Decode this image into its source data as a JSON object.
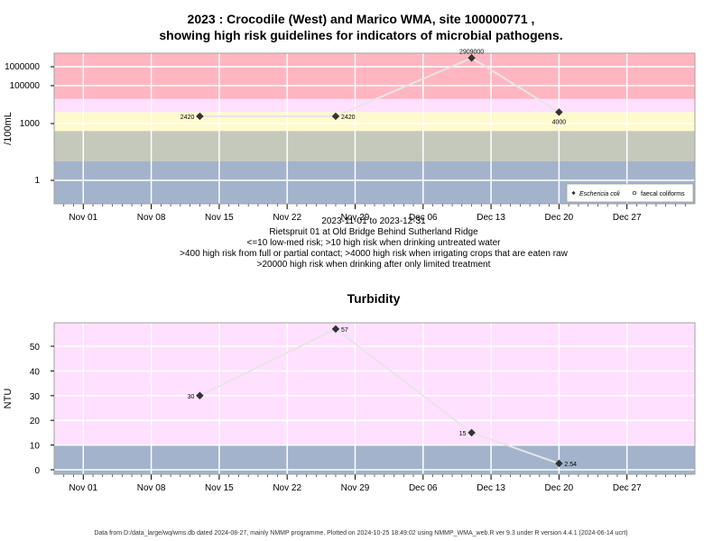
{
  "title_line1": "2023 : Crocodile (West) and Marico WMA, site 100000771 ,",
  "title_line2": "showing high risk guidelines for indicators of microbial pathogens.",
  "subtitles": [
    "2023-11-01 to 2023-12-31",
    "Rietspruit 01 at Old Bridge Behind Sutherland Ridge",
    "<=10 low-med risk; >10 high risk when drinking untreated water",
    ">400 high risk from full or partial contact; >4000 high risk when irrigating crops that are eaten raw",
    ">20000 high risk when drinking after only limited treatment"
  ],
  "turbidity_title": "Turbidity",
  "footer": "Data from D:/data_large/wq/wms.db dated 2024-08-27, mainly NMMP programme. Plotted on 2024-10-25 18:49:02 using NMMP_WMA_web.R ver 9.3 under R version 4.4.1 (2024-06-14 ucrt)",
  "colors": {
    "band_red": "#ffb6c1",
    "band_pink": "#ffe0ff",
    "band_yellow": "#fffacd",
    "band_grey": "#c5c9bc",
    "band_blue": "#a3b3cc",
    "turb_pink": "#ffe0ff",
    "line": "#e6e6e6",
    "point": "#333333",
    "grid": "#ffffff",
    "frame": "#a0a0a0"
  },
  "chart_data": [
    {
      "type": "line",
      "ylabel": "/100mL",
      "log_y": true,
      "x_ticks": [
        "Nov 01",
        "Nov 08",
        "Nov 15",
        "Nov 22",
        "Nov 29",
        "Dec 06",
        "Dec 13",
        "Dec 20",
        "Dec 27"
      ],
      "y_ticks": [
        "1",
        "1000",
        "100000",
        "1000000"
      ],
      "legend": [
        "Eschericia coli",
        "faecal coliforms"
      ],
      "legend_position": "bottom-right",
      "guideline_bands": [
        {
          "label": "low-med risk",
          "max": 10
        },
        {
          "label": "high risk when drinking untreated water",
          "min": 10,
          "max": 400
        },
        {
          "label": "high risk from full or partial contact",
          "min": 400,
          "max": 4000
        },
        {
          "label": "high risk when irrigating crops that are eaten raw",
          "min": 4000,
          "max": 20000
        },
        {
          "label": "high risk when drinking after only limited treatment",
          "min": 20000
        }
      ],
      "series": [
        {
          "name": "Eschericia coli",
          "x": [
            "2023-11-13",
            "2023-11-27",
            "2023-12-11",
            "2023-12-20"
          ],
          "values": [
            2420,
            2420,
            2909000,
            4000
          ],
          "labels": [
            "2420",
            "2420",
            "2909000",
            "4000"
          ]
        }
      ]
    },
    {
      "type": "line",
      "title": "Turbidity",
      "ylabel": "NTU",
      "ylim": [
        -2,
        60
      ],
      "x_ticks": [
        "Nov 01",
        "Nov 08",
        "Nov 15",
        "Nov 22",
        "Nov 29",
        "Dec 06",
        "Dec 13",
        "Dec 20",
        "Dec 27"
      ],
      "y_ticks": [
        "0",
        "10",
        "20",
        "30",
        "40",
        "50"
      ],
      "series": [
        {
          "x": [
            "2023-11-13",
            "2023-11-27",
            "2023-12-11",
            "2023-12-20"
          ],
          "values": [
            30,
            57,
            15,
            2.54
          ],
          "labels": [
            "30",
            "57",
            "15",
            "2.54"
          ]
        }
      ]
    }
  ]
}
